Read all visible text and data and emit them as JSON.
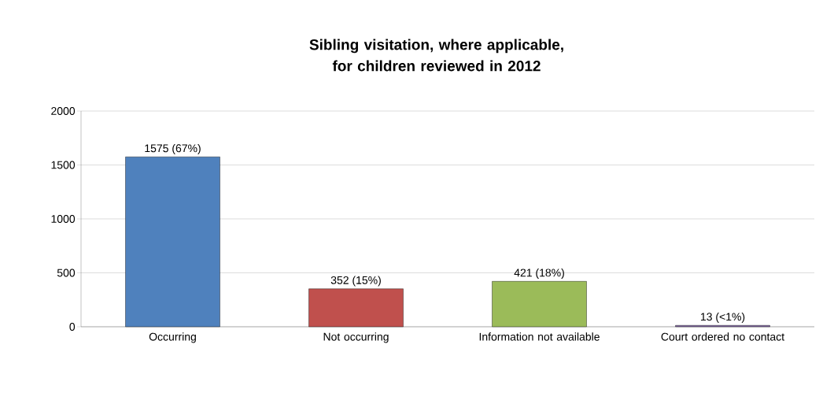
{
  "chart_data": {
    "type": "bar",
    "title": "Sibling visitation, where applicable, for children reviewed in 2012",
    "categories": [
      "Occurring",
      "Not occurring",
      "Information not available",
      "Court ordered no contact"
    ],
    "values": [
      1575,
      352,
      421,
      13
    ],
    "colors": [
      "#4f81bd",
      "#c0504d",
      "#9bbb59",
      "#8064a2"
    ],
    "value_labels": [
      "1575 (67%)",
      "352 (15%)",
      "421 (18%)",
      "13 (<1%)"
    ],
    "ylim": [
      0,
      2000
    ],
    "yticks": [
      0,
      500,
      1000,
      1500,
      2000
    ],
    "grid": "y"
  }
}
